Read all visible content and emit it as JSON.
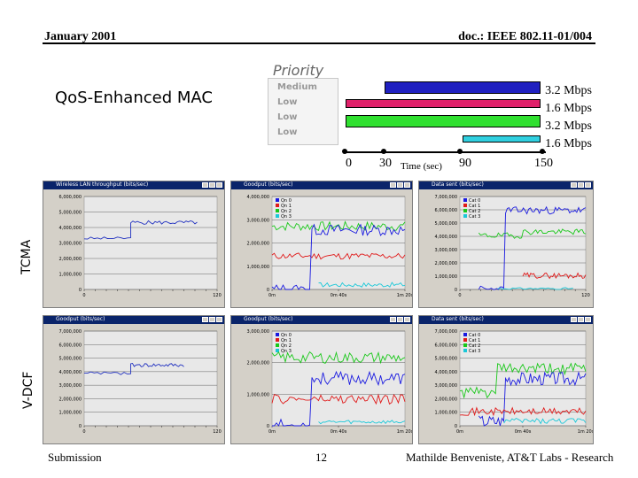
{
  "header": {
    "date": "January 2001",
    "doc": "doc.: IEEE 802.11-01/004"
  },
  "slide": {
    "title": "QoS-Enhanced MAC",
    "priority_label": "Priority",
    "legend_mini_labels": [
      "Medium",
      "Low",
      "Low",
      "Low"
    ],
    "row_labels": {
      "tcma": "TCMA",
      "vdcf": "V-DCF"
    }
  },
  "timeline": {
    "flows": [
      {
        "rate": "3.2 Mbps",
        "color": "#2020c0",
        "start": 30,
        "end": 150
      },
      {
        "rate": "1.6 Mbps",
        "color": "#e0206a",
        "start": 0,
        "end": 150
      },
      {
        "rate": "3.2 Mbps",
        "color": "#30e030",
        "start": 0,
        "end": 150
      },
      {
        "rate": "1.6 Mbps",
        "color": "#30d0e0",
        "start": 90,
        "end": 150
      }
    ],
    "ticks": [
      "0",
      "30",
      "90",
      "150"
    ],
    "axis_label": "Time (sec)"
  },
  "colors": {
    "blue": "#1a1ae0",
    "red": "#e01a1a",
    "green": "#1ac81a",
    "cyan": "#1ac8d8",
    "series_blue": "#2030c0"
  },
  "charts": {
    "a": {
      "title": "Wireless LAN throughput (bits/sec)",
      "legend": [],
      "yticks": [
        "6,000,000",
        "5,000,000",
        "4,000,000",
        "3,000,000",
        "2,000,000",
        "1,000,000",
        "0"
      ],
      "xticks": [
        "0",
        "",
        "",
        "",
        "",
        "",
        "",
        "",
        "",
        "",
        "",
        "",
        "120"
      ]
    },
    "b": {
      "title": "Goodput (bits/sec)",
      "legend": [
        "Qn 0",
        "Qn 1",
        "Qn 2",
        "Qn 3"
      ],
      "yticks": [
        "4,000,000",
        "3,000,000",
        "2,000,000",
        "1,000,000",
        "0"
      ],
      "xticks": [
        "0m",
        "0m 40s",
        "1m 20s"
      ]
    },
    "c": {
      "title": "Data sent (bits/sec)",
      "legend": [
        "Cat 0",
        "Cat 1",
        "Cat 2",
        "Cat 3"
      ],
      "yticks": [
        "7,000,000",
        "6,000,000",
        "5,000,000",
        "4,000,000",
        "3,000,000",
        "2,000,000",
        "1,000,000",
        "0"
      ],
      "xticks": [
        "0",
        "",
        "",
        "",
        "",
        "",
        "",
        "",
        "",
        "",
        "",
        "",
        "120"
      ]
    },
    "d": {
      "title": "Goodput (bits/sec)",
      "legend": [],
      "yticks": [
        "7,000,000",
        "6,000,000",
        "5,000,000",
        "4,000,000",
        "3,000,000",
        "2,000,000",
        "1,000,000",
        "0"
      ],
      "xticks": [
        "0",
        "",
        "",
        "",
        "",
        "",
        "",
        "",
        "",
        "",
        "",
        "",
        "120"
      ]
    },
    "e": {
      "title": "Goodput (bits/sec)",
      "legend": [
        "Qn 0",
        "Qn 1",
        "Qn 2",
        "Qn 3"
      ],
      "yticks": [
        "3,000,000",
        "2,000,000",
        "1,000,000",
        "0"
      ],
      "xticks": [
        "0m",
        "0m 40s",
        "1m 20s"
      ]
    },
    "f": {
      "title": "Data sent (bits/sec)",
      "legend": [
        "Cat 0",
        "Cat 1",
        "Cat 2",
        "Cat 3"
      ],
      "yticks": [
        "7,000,000",
        "6,000,000",
        "5,000,000",
        "4,000,000",
        "3,000,000",
        "2,000,000",
        "1,000,000",
        "0"
      ],
      "xticks": [
        "0m",
        "0m 40s",
        "1m 20s"
      ]
    }
  },
  "footer": {
    "left": "Submission",
    "page": "12",
    "right": "Mathilde Benveniste, AT&T Labs - Research"
  }
}
